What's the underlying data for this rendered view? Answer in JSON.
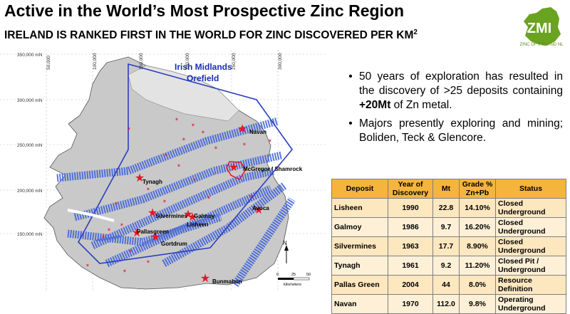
{
  "header": {
    "title": "Active in the World’s Most Prospective Zinc Region",
    "subtitle": "IRELAND IS RANKED FIRST IN THE WORLD FOR ZINC DISCOVERED PER KM",
    "subtitle_sup": "2"
  },
  "logo": {
    "icon": "zmi-ireland-map-logo",
    "text": "ZMI",
    "caption": "ZINC OF IRELAND NL",
    "color": "#6aa320"
  },
  "map": {
    "orefield_label_line1": "Irish Midlands",
    "orefield_label_line2": "Orefield",
    "northings": [
      "350,000 mN",
      "300,000 mN",
      "250,000 mN",
      "200,000 mN",
      "150,000 mN"
    ],
    "eastings": [
      "50,000",
      "100,000",
      "150,000",
      "200,000",
      "250,000",
      "300,000"
    ],
    "deposits": [
      "Navan",
      "McGregor / Shamrock",
      "Tynagh",
      "Silvermines",
      "Galmoy",
      "Lisheen",
      "Avoca",
      "Pallasgreen",
      "Gortdrum",
      "Bunmahon"
    ],
    "scale_label": "kilometers",
    "scale_ticks": [
      "0",
      "25",
      "50"
    ],
    "north_label": "N",
    "colors": {
      "land": "#c8c8c8",
      "sea": "#ffffff",
      "outline": "#2b3fbf",
      "trend": "#3a5fd9",
      "star": "#e5162a"
    }
  },
  "bullets": [
    {
      "pre": "50 years of exploration has resulted in the discovery of >25 deposits containing ",
      "bold": "+20Mt",
      "post": " of Zn metal."
    },
    {
      "pre": "Majors presently exploring and mining; Boliden, Teck & Glencore.",
      "bold": "",
      "post": ""
    }
  ],
  "table": {
    "headers": [
      "Deposit",
      "Year of Discovery",
      "Mt",
      "Grade % Zn+Pb",
      "Status"
    ],
    "rows": [
      [
        "Lisheen",
        "1990",
        "22.8",
        "14.10%",
        "Closed Underground"
      ],
      [
        "Galmoy",
        "1986",
        "9.7",
        "16.20%",
        "Closed Underground"
      ],
      [
        "Silvermines",
        "1963",
        "17.7",
        "8.90%",
        "Closed Underground"
      ],
      [
        "Tynagh",
        "1961",
        "9.2",
        "11.20%",
        "Closed Pit / Underground"
      ],
      [
        "Pallas Green",
        "2004",
        "44",
        "8.0%",
        "Resource Definition"
      ],
      [
        "Navan",
        "1970",
        "112.0",
        "9.8%",
        "Operating Underground"
      ]
    ]
  }
}
